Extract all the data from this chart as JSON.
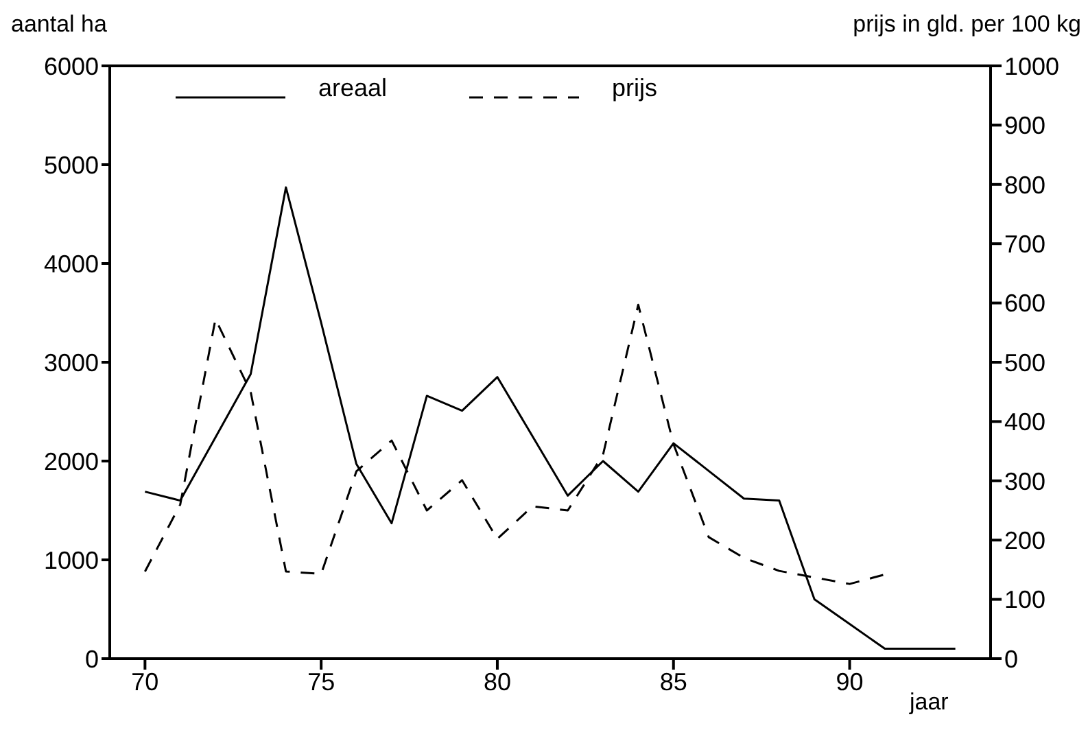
{
  "chart_data": {
    "type": "line",
    "xlabel": "jaar",
    "ylabel": "aantal ha",
    "y2label": "prijs in gld. per 100 kg",
    "x": [
      70,
      71,
      72,
      73,
      74,
      75,
      76,
      77,
      78,
      79,
      80,
      81,
      82,
      83,
      84,
      85,
      86,
      87,
      88,
      89,
      90,
      91,
      92,
      93
    ],
    "series": [
      {
        "name": "areaal",
        "color": "#000000",
        "line_style": "solid",
        "values": [
          1690,
          1600,
          2240,
          2880,
          4770,
          3400,
          1970,
          1370,
          2660,
          2510,
          2850,
          2250,
          1650,
          2000,
          1690,
          2180,
          1900,
          1620,
          1600,
          600,
          350,
          100,
          100,
          100
        ]
      },
      {
        "name": "prijs",
        "color": "#000000",
        "line_style": "dashed",
        "axis": "y2",
        "values": [
          147,
          260,
          573,
          450,
          147,
          143,
          316,
          368,
          250,
          301,
          202,
          257,
          250,
          344,
          597,
          362,
          205,
          170,
          148,
          137,
          126,
          142,
          null,
          null
        ]
      }
    ],
    "xlim": [
      69,
      94
    ],
    "xticks": [
      70,
      75,
      80,
      85,
      90
    ],
    "ylim": [
      0,
      6000
    ],
    "yticks": [
      0,
      1000,
      2000,
      3000,
      4000,
      5000,
      6000
    ],
    "y2lim": [
      0,
      1000
    ],
    "y2ticks": [
      0,
      100,
      200,
      300,
      400,
      500,
      600,
      700,
      800,
      900,
      1000
    ],
    "marker": "none",
    "grid": false,
    "legend": "top"
  }
}
